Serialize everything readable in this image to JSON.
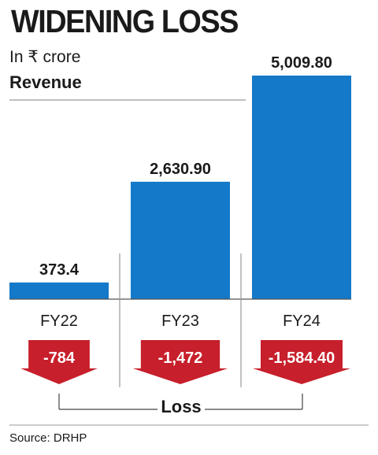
{
  "title": "WIDENING LOSS",
  "unit_label": "In ₹ crore",
  "source": "Source: DRHP",
  "colors": {
    "revenue": "#1479c8",
    "loss": "#c71f2b",
    "rule": "#999999"
  },
  "chart_data": [
    {
      "type": "bar",
      "title": "WIDENING LOSS",
      "subtitle": "In ₹ crore",
      "categories": [
        "FY22",
        "FY23",
        "FY24"
      ],
      "series": [
        {
          "name": "Revenue",
          "values": [
            373.4,
            2630.9,
            5009.8
          ],
          "labels": [
            "373.4",
            "2,630.90",
            "5,009.80"
          ]
        }
      ],
      "grid": false
    },
    {
      "type": "bar",
      "categories": [
        "FY22",
        "FY23",
        "FY24"
      ],
      "series": [
        {
          "name": "Loss",
          "values": [
            -784,
            -1472,
            -1584.4
          ],
          "labels": [
            "-784",
            "-1,472",
            "-1,584.40"
          ]
        }
      ],
      "grid": false
    }
  ]
}
